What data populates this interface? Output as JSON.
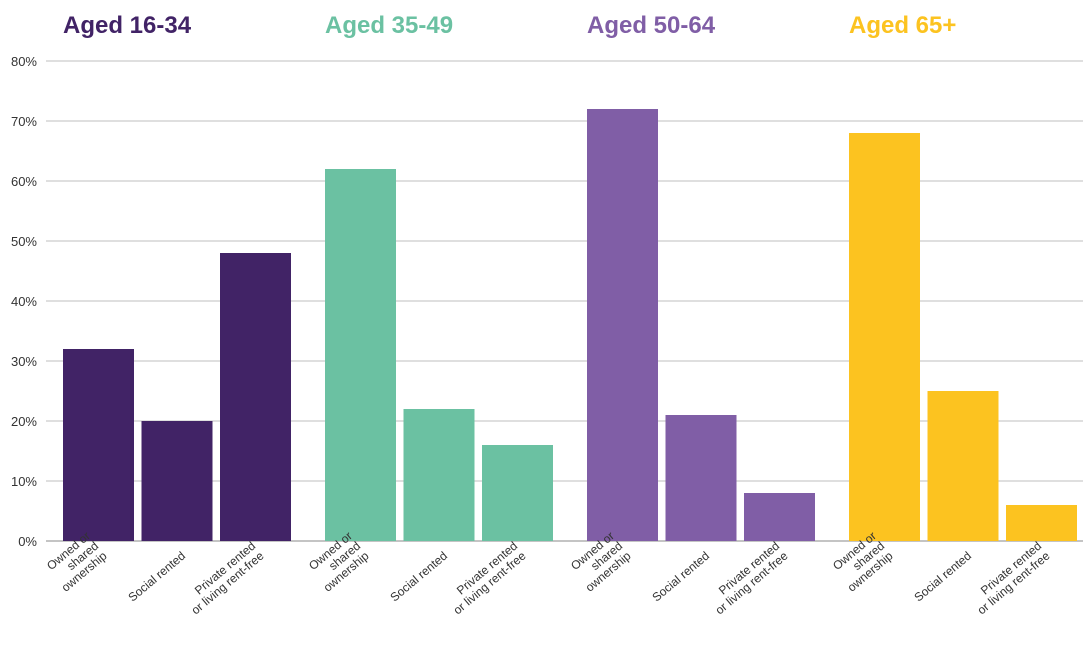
{
  "chart_data": {
    "type": "bar",
    "ylim": [
      0,
      80
    ],
    "yticks": [
      "0%",
      "10%",
      "20%",
      "30%",
      "40%",
      "50%",
      "60%",
      "70%",
      "80%"
    ],
    "grid": true,
    "categories": [
      [
        "Owned or",
        "shared",
        "ownership"
      ],
      [
        "Social rented"
      ],
      [
        "Private rented",
        "or living rent-free"
      ]
    ],
    "groups": [
      {
        "title": "Aged 16-34",
        "color": "#412366",
        "values": [
          32,
          20,
          48
        ]
      },
      {
        "title": "Aged 35-49",
        "color": "#6bc1a2",
        "values": [
          62,
          22,
          16
        ]
      },
      {
        "title": "Aged 50-64",
        "color": "#805ea6",
        "values": [
          72,
          21,
          8
        ]
      },
      {
        "title": "Aged 65+",
        "color": "#fcc320",
        "values": [
          68,
          25,
          6
        ]
      }
    ]
  }
}
